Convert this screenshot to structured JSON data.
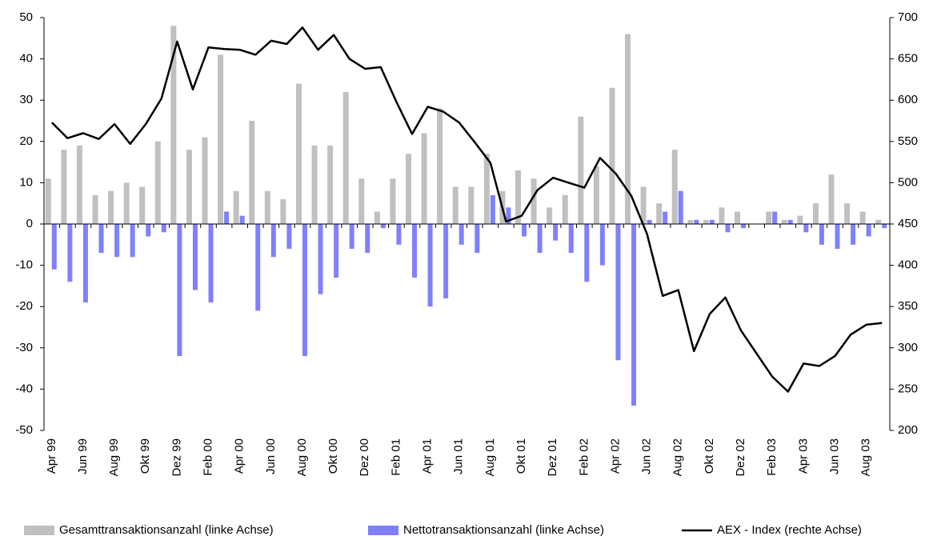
{
  "chart_data": {
    "type": "bar-line",
    "categories": [
      "Apr 99",
      null,
      "Jun 99",
      null,
      "Aug 99",
      null,
      "Okt 99",
      null,
      "Dez 99",
      null,
      "Feb 00",
      null,
      "Apr 00",
      null,
      "Jun 00",
      null,
      "Aug 00",
      null,
      "Okt 00",
      null,
      "Dez 00",
      null,
      "Feb 01",
      null,
      "Apr 01",
      null,
      "Jun 01",
      null,
      "Aug 01",
      null,
      "Okt 01",
      null,
      "Dez 01",
      null,
      "Feb 02",
      null,
      "Apr 02",
      null,
      "Jun 02",
      null,
      "Aug 02",
      null,
      "Okt 02",
      null,
      "Dez 02",
      null,
      "Feb 03",
      null,
      "Apr 03",
      null,
      "Jun 03",
      null,
      "Aug 03",
      null
    ],
    "series": [
      {
        "name": "Gesamttransaktionsanzahl (linke Achse)",
        "color": "#c0c0c0",
        "type": "bar",
        "values": [
          11,
          18,
          19,
          7,
          8,
          10,
          9,
          20,
          48,
          18,
          21,
          41,
          8,
          25,
          8,
          6,
          34,
          19,
          19,
          32,
          11,
          3,
          11,
          17,
          22,
          28,
          9,
          9,
          17,
          8,
          13,
          11,
          4,
          7,
          26,
          14,
          33,
          46,
          9,
          5,
          18,
          1,
          1,
          4,
          3,
          0,
          3,
          1,
          2,
          5,
          12,
          5,
          3,
          1
        ]
      },
      {
        "name": "Nettotransaktionsanzahl (linke Achse)",
        "color": "#8080ff",
        "type": "bar",
        "values": [
          -11,
          -14,
          -19,
          -7,
          -8,
          -8,
          -3,
          -2,
          -32,
          -16,
          -19,
          3,
          2,
          -21,
          -8,
          -6,
          -32,
          -17,
          -13,
          -6,
          -7,
          -1,
          -5,
          -13,
          -20,
          -18,
          -5,
          -7,
          7,
          4,
          -3,
          -7,
          -4,
          -7,
          -14,
          -10,
          -33,
          -44,
          1,
          3,
          8,
          1,
          1,
          -2,
          -1,
          0,
          3,
          1,
          -2,
          -5,
          -6,
          -5,
          -3,
          -1
        ]
      },
      {
        "name": "AEX - Index (rechte Achse)",
        "color": "#000000",
        "type": "line",
        "axis": "y2",
        "values": [
          573,
          554,
          560,
          553,
          571,
          547,
          571,
          602,
          671,
          613,
          664,
          662,
          661,
          655,
          672,
          668,
          688,
          661,
          679,
          650,
          638,
          640,
          598,
          559,
          592,
          586,
          573,
          549,
          524,
          453,
          460,
          491,
          506,
          500,
          494,
          530,
          511,
          484,
          438,
          363,
          370,
          296,
          341,
          361,
          321,
          293,
          265,
          247,
          281,
          278,
          290,
          316,
          328,
          330
        ]
      }
    ],
    "ylim": [
      -50,
      50
    ],
    "yticks": [
      -50,
      -40,
      -30,
      -20,
      -10,
      0,
      10,
      20,
      30,
      40,
      50
    ],
    "y2lim": [
      200,
      700
    ],
    "y2ticks": [
      200,
      250,
      300,
      350,
      400,
      450,
      500,
      550,
      600,
      650,
      700
    ]
  }
}
